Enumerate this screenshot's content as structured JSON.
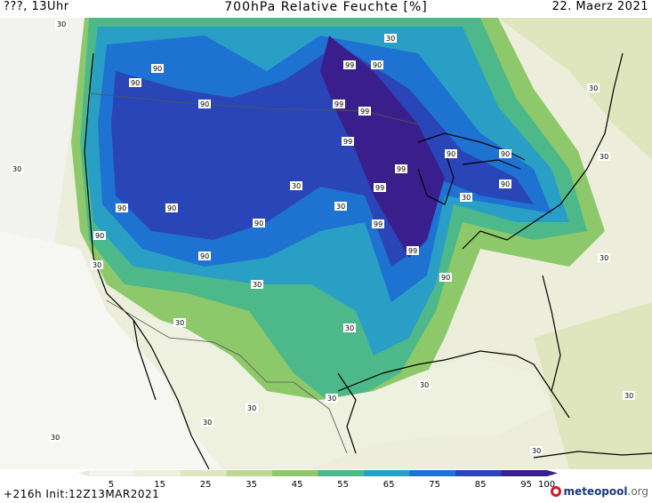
{
  "header": {
    "left": "???, 13Uhr",
    "title": "700hPa Relative Feuchte [%]",
    "date": "22. Maerz 2021"
  },
  "footer": {
    "run": "+216h  Init:12Z13MAR2021",
    "logo_name": "meteopool",
    "logo_tld": ".org"
  },
  "colorbar": {
    "ticks": [
      "5",
      "15",
      "25",
      "35",
      "45",
      "55",
      "65",
      "75",
      "85",
      "95",
      "100"
    ],
    "colors": [
      "#ffffff",
      "#f2f3ee",
      "#eceedb",
      "#dfe6bd",
      "#bfd790",
      "#8dc96a",
      "#4db98a",
      "#2a9fc6",
      "#1e72d2",
      "#2a45b8",
      "#3a1f8c"
    ]
  },
  "map": {
    "contour_labels": [
      "90",
      "90",
      "90",
      "90",
      "90",
      "90",
      "90",
      "90",
      "90",
      "90",
      "90",
      "90",
      "90",
      "99",
      "99",
      "99",
      "99",
      "99",
      "99",
      "99",
      "99",
      "30",
      "30",
      "30",
      "30",
      "30",
      "30",
      "30",
      "30",
      "30",
      "30",
      "30",
      "30",
      "30",
      "30",
      "30",
      "30",
      "30",
      "30",
      "30",
      "30"
    ]
  }
}
